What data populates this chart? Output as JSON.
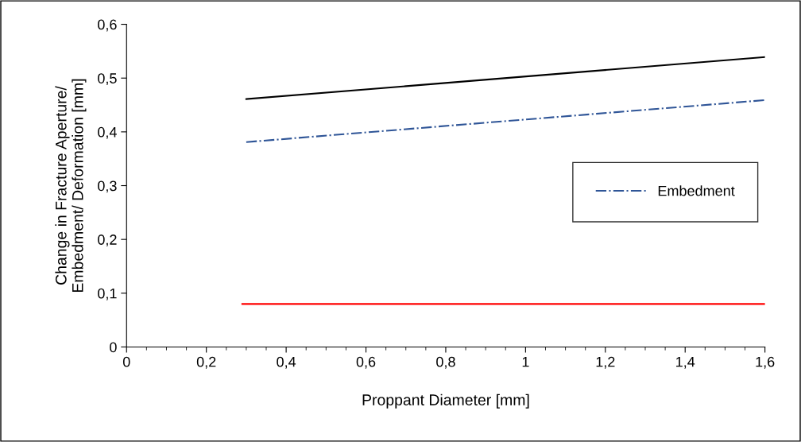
{
  "chart_data": {
    "type": "line",
    "xlabel": "Proppant Diameter [mm]",
    "ylabel": "Change in Fracture Aperture/\nEmbedment/ Deformation [mm]",
    "xlim": [
      0,
      1.6
    ],
    "xticks": [
      {
        "value": 0,
        "label": "0"
      },
      {
        "value": 0.2,
        "label": "0,2"
      },
      {
        "value": 0.4,
        "label": "0,4"
      },
      {
        "value": 0.6,
        "label": "0,6"
      },
      {
        "value": 0.8,
        "label": "0,8"
      },
      {
        "value": 1,
        "label": "1"
      },
      {
        "value": 1.2,
        "label": "1,2"
      },
      {
        "value": 1.4,
        "label": "1,4"
      },
      {
        "value": 1.6,
        "label": "1,6"
      }
    ],
    "ylim": [
      0,
      0.6
    ],
    "yticks": [
      {
        "value": 0,
        "label": "0"
      },
      {
        "value": 0.1,
        "label": "0,1"
      },
      {
        "value": 0.2,
        "label": "0,2"
      },
      {
        "value": 0.3,
        "label": "0,3"
      },
      {
        "value": 0.4,
        "label": "0,4"
      },
      {
        "value": 0.5,
        "label": "0,5"
      },
      {
        "value": 0.6,
        "label": "0,6"
      }
    ],
    "grid": false,
    "legend": "right",
    "marker": "none",
    "series": [
      {
        "color": "#000000",
        "x": [
          0.3,
          1.6
        ],
        "values": [
          0.461,
          0.539
        ],
        "line_style": "solid"
      },
      {
        "name": "Embedment",
        "color": "#2f5597",
        "x": [
          0.3,
          1.6
        ],
        "values": [
          0.381,
          0.459
        ],
        "line_style": "dashdot"
      },
      {
        "color": "#ff0000",
        "x": [
          0.29,
          1.6
        ],
        "values": [
          0.08,
          0.08
        ],
        "line_style": "solid"
      }
    ]
  }
}
